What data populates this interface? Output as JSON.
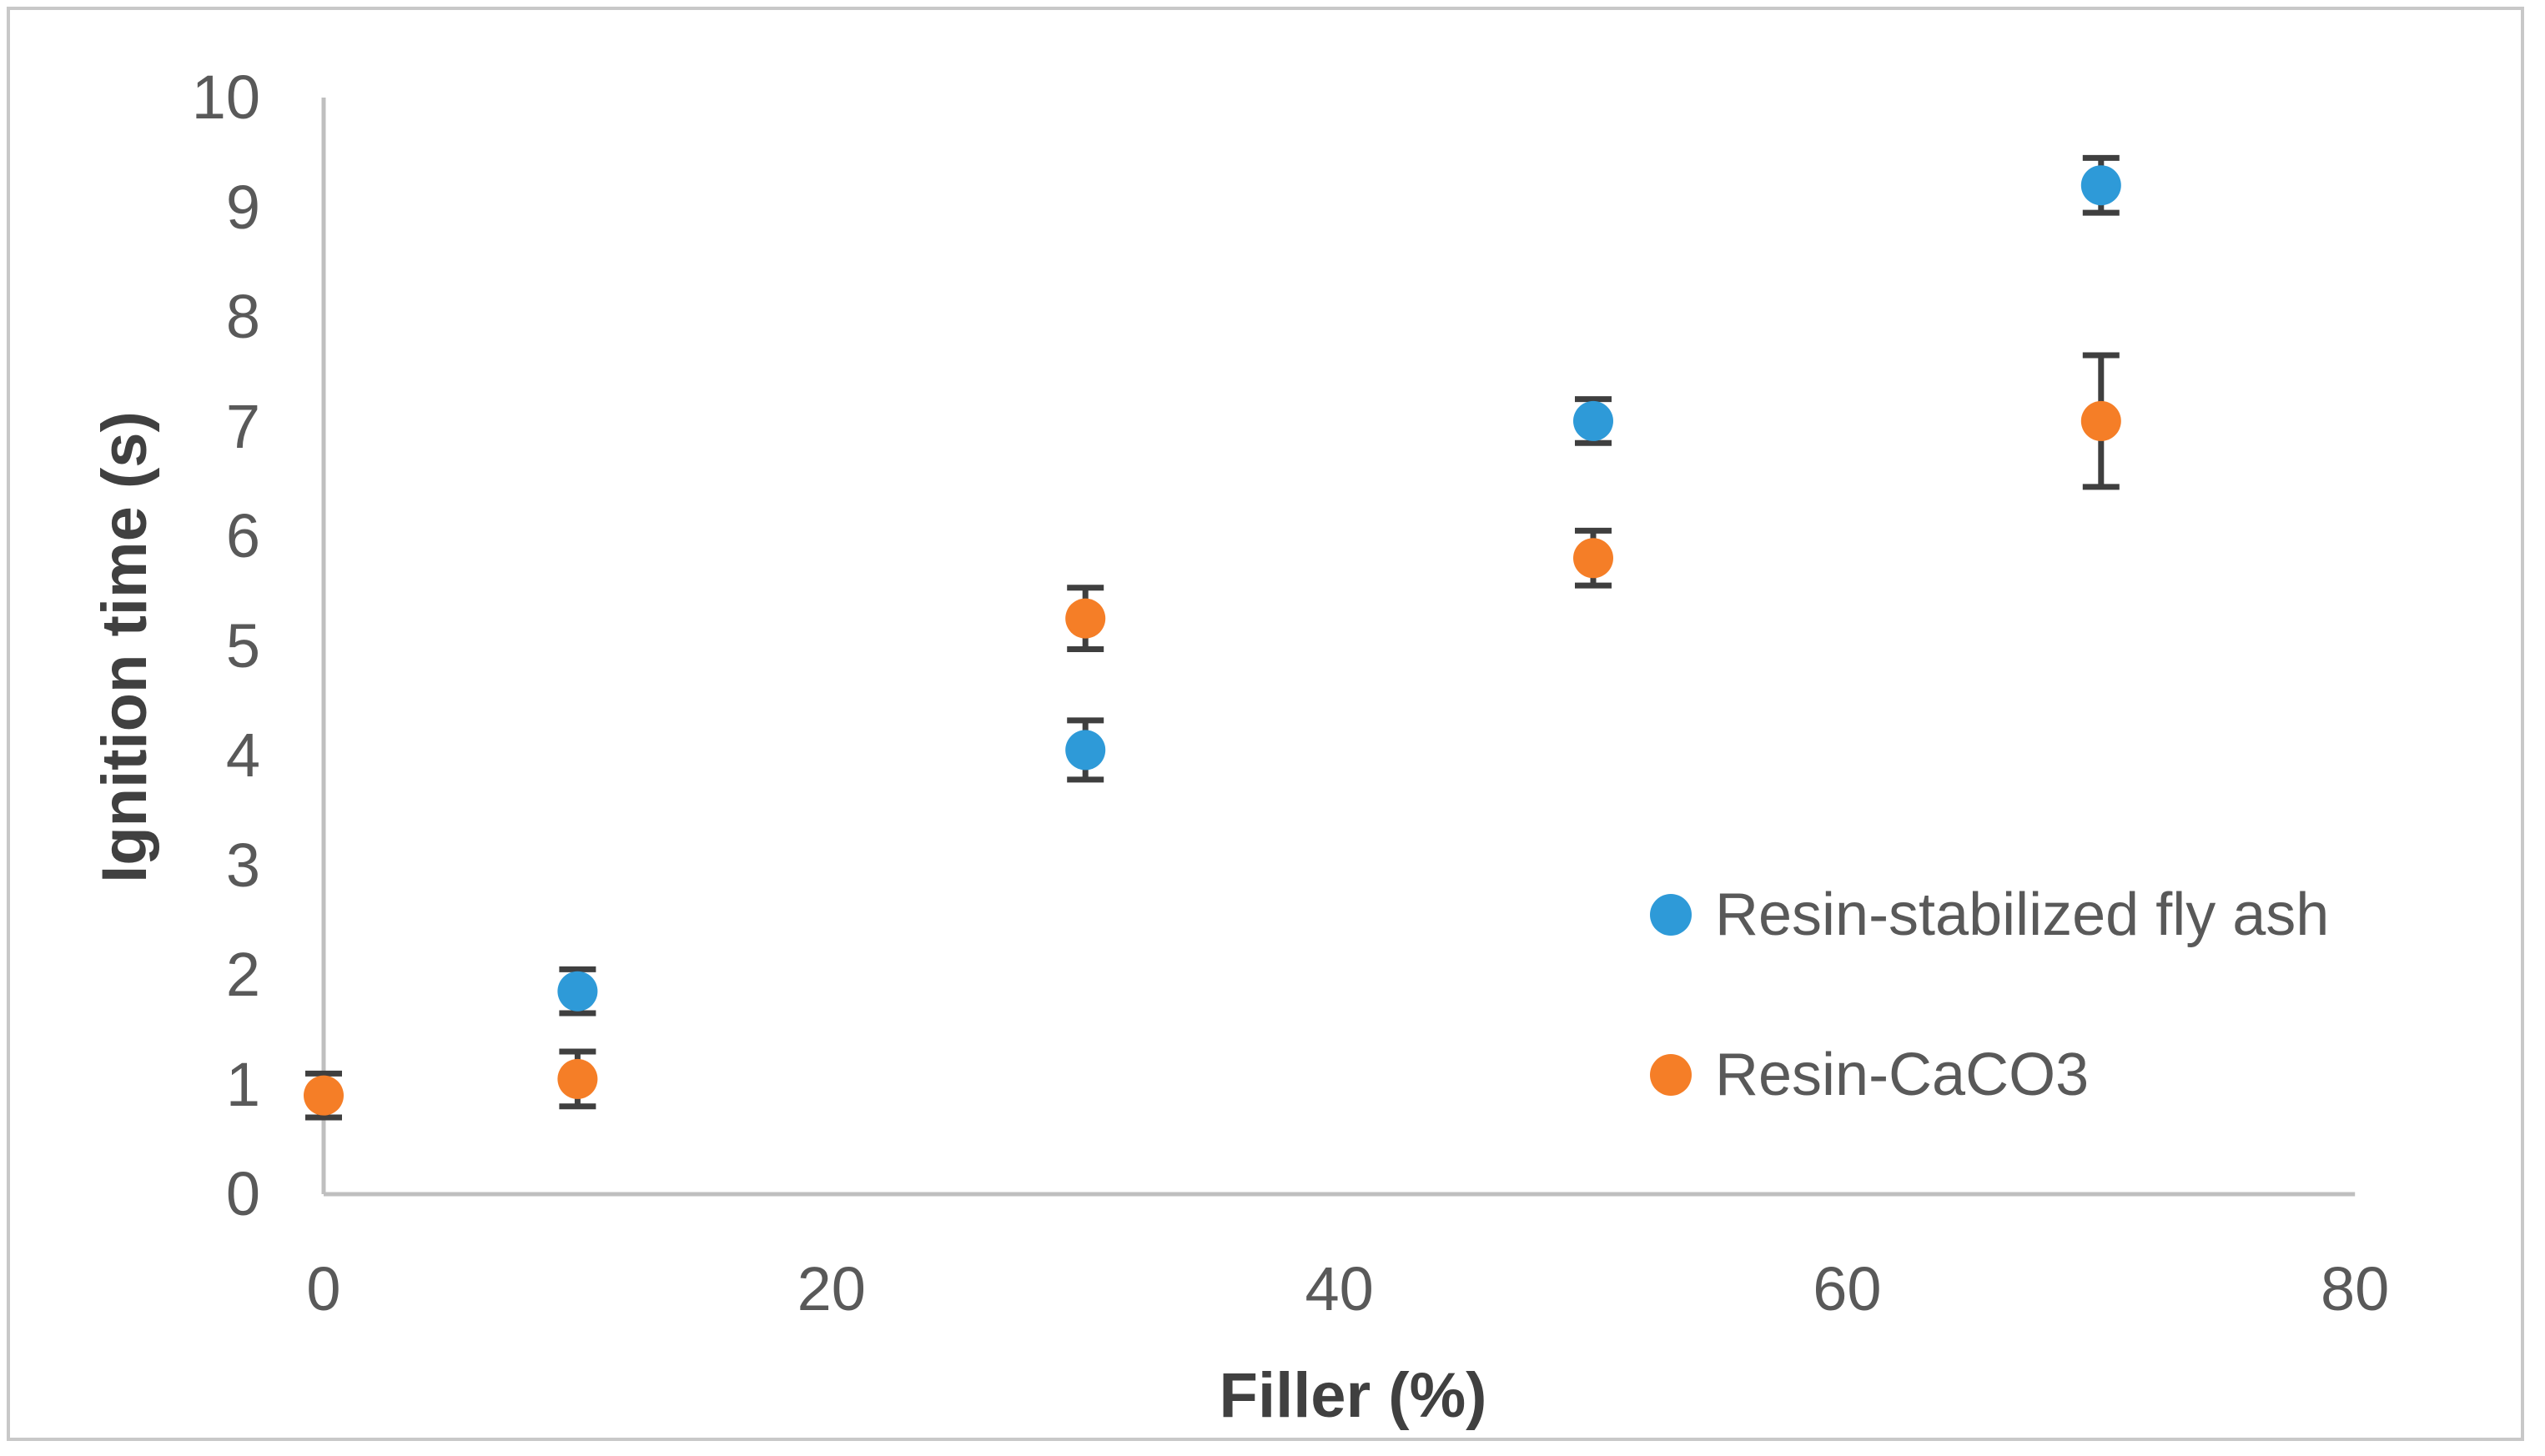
{
  "figure": {
    "background": "#FFFFFF",
    "border_color": "#C8C8C8"
  },
  "chart_data": {
    "type": "scatter",
    "title": "",
    "xlabel": "Filler (%)",
    "ylabel": "Ignition time (s)",
    "xlim": [
      0,
      80
    ],
    "ylim": [
      0,
      10
    ],
    "xticks": [
      0,
      20,
      40,
      60,
      80
    ],
    "yticks": [
      0,
      1,
      2,
      3,
      4,
      5,
      6,
      7,
      8,
      9,
      10
    ],
    "grid": false,
    "error_bars": "vertical",
    "axis_line_color": "#BFBFBF",
    "tick_label_color": "#595959",
    "axis_title_color": "#404040",
    "error_bar_color": "#3F3F3F",
    "legend_position": "right-center",
    "series": [
      {
        "name": "Resin-stabilized fly ash",
        "color": "#2E9AD8",
        "points": [
          {
            "x": 10,
            "y": 1.85,
            "yerr": 0.2
          },
          {
            "x": 30,
            "y": 4.05,
            "yerr": 0.27
          },
          {
            "x": 50,
            "y": 7.05,
            "yerr": 0.2
          },
          {
            "x": 70,
            "y": 9.2,
            "yerr": 0.25
          }
        ]
      },
      {
        "name": "Resin-CaCO3",
        "color": "#F57E27",
        "points": [
          {
            "x": 0,
            "y": 0.9,
            "yerr": 0.2
          },
          {
            "x": 10,
            "y": 1.05,
            "yerr": 0.25
          },
          {
            "x": 30,
            "y": 5.25,
            "yerr": 0.28
          },
          {
            "x": 50,
            "y": 5.8,
            "yerr": 0.25
          },
          {
            "x": 70,
            "y": 7.05,
            "yerr": 0.6
          }
        ]
      }
    ]
  }
}
